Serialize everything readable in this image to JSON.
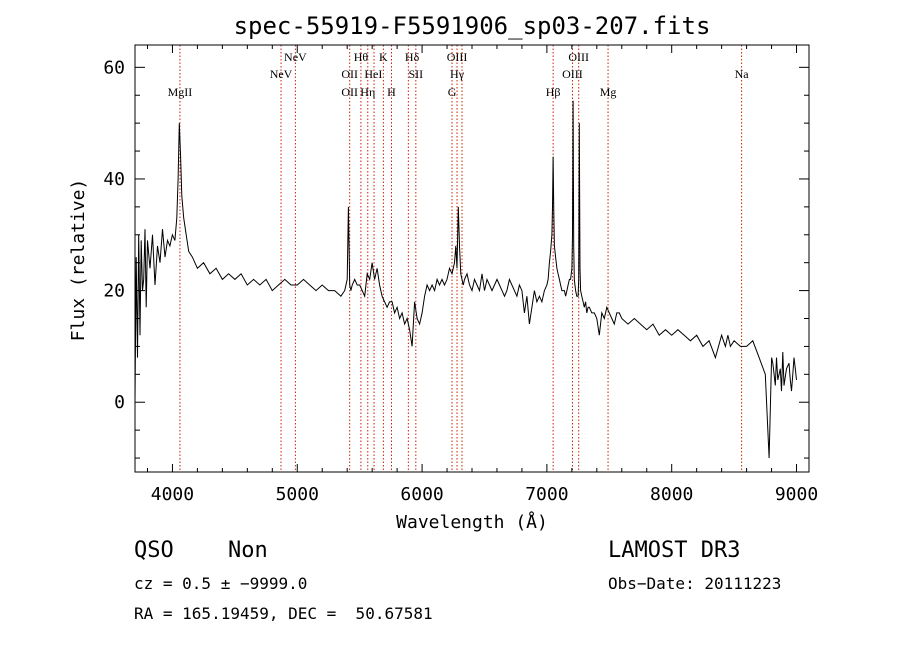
{
  "chart_data": {
    "type": "line",
    "title": "spec-55919-F5591906_sp03-207.fits",
    "xlabel": "Wavelength (Å)",
    "ylabel": "Flux (relative)",
    "xlim": [
      3700,
      9100
    ],
    "ylim": [
      -12.5,
      64
    ],
    "x_ticks": [
      4000,
      5000,
      6000,
      7000,
      8000,
      9000
    ],
    "y_ticks": [
      0,
      20,
      40,
      60
    ],
    "grid": false,
    "series": [
      {
        "name": "spectrum",
        "x": [
          3700,
          3710,
          3720,
          3730,
          3740,
          3750,
          3760,
          3770,
          3780,
          3790,
          3800,
          3820,
          3840,
          3860,
          3880,
          3900,
          3920,
          3940,
          3960,
          3980,
          4000,
          4020,
          4035,
          4045,
          4055,
          4065,
          4075,
          4090,
          4110,
          4130,
          4160,
          4200,
          4250,
          4300,
          4350,
          4400,
          4450,
          4500,
          4550,
          4600,
          4650,
          4700,
          4750,
          4800,
          4850,
          4900,
          4950,
          5000,
          5050,
          5100,
          5150,
          5200,
          5250,
          5300,
          5350,
          5380,
          5400,
          5410,
          5420,
          5430,
          5440,
          5460,
          5480,
          5500,
          5520,
          5540,
          5560,
          5580,
          5600,
          5620,
          5640,
          5660,
          5680,
          5700,
          5720,
          5740,
          5760,
          5780,
          5800,
          5820,
          5840,
          5860,
          5880,
          5900,
          5920,
          5940,
          5960,
          5980,
          6000,
          6020,
          6040,
          6060,
          6080,
          6100,
          6120,
          6140,
          6160,
          6180,
          6200,
          6220,
          6240,
          6260,
          6270,
          6280,
          6290,
          6300,
          6310,
          6320,
          6330,
          6340,
          6360,
          6380,
          6400,
          6420,
          6440,
          6460,
          6480,
          6500,
          6520,
          6540,
          6560,
          6580,
          6600,
          6620,
          6640,
          6660,
          6680,
          6700,
          6720,
          6740,
          6760,
          6780,
          6800,
          6820,
          6840,
          6860,
          6880,
          6900,
          6920,
          6940,
          6960,
          6980,
          7000,
          7010,
          7020,
          7030,
          7040,
          7045,
          7050,
          7055,
          7060,
          7070,
          7080,
          7090,
          7100,
          7110,
          7120,
          7130,
          7140,
          7150,
          7160,
          7170,
          7180,
          7190,
          7200,
          7205,
          7210,
          7215,
          7220,
          7230,
          7240,
          7250,
          7255,
          7260,
          7265,
          7270,
          7280,
          7290,
          7300,
          7310,
          7320,
          7330,
          7340,
          7360,
          7380,
          7400,
          7420,
          7440,
          7460,
          7480,
          7500,
          7520,
          7540,
          7560,
          7580,
          7600,
          7650,
          7700,
          7750,
          7800,
          7850,
          7900,
          7950,
          8000,
          8050,
          8100,
          8150,
          8200,
          8250,
          8300,
          8350,
          8400,
          8430,
          8450,
          8470,
          8500,
          8550,
          8600,
          8650,
          8700,
          8750,
          8780,
          8800,
          8810,
          8820,
          8830,
          8840,
          8850,
          8870,
          8880,
          8890,
          8900,
          8920,
          8940,
          8950,
          8960,
          8970,
          8980,
          8990,
          9000
        ],
        "y": [
          0,
          26,
          8,
          30,
          12,
          29,
          20,
          22,
          31,
          17,
          29,
          24,
          30,
          21,
          28,
          25,
          31,
          26,
          29,
          28,
          30,
          29,
          33,
          40,
          50,
          44,
          37,
          33,
          30,
          27,
          26,
          24,
          25,
          23,
          24,
          22,
          23,
          22,
          23,
          21,
          22,
          21,
          22,
          20,
          21,
          22,
          21,
          21,
          22,
          21,
          20,
          21,
          20,
          20,
          19,
          20,
          22,
          35,
          21,
          20,
          21,
          22,
          21,
          21,
          20,
          19,
          23,
          22,
          25,
          22,
          24,
          21,
          19,
          18,
          17,
          18,
          18,
          16,
          17,
          15,
          16,
          14,
          15,
          13,
          10,
          18,
          15,
          14,
          16,
          19,
          21,
          20,
          21,
          20,
          22,
          21,
          22,
          21,
          22,
          24,
          23,
          25,
          28,
          24,
          35,
          28,
          23,
          22,
          21,
          22,
          23,
          21,
          20,
          22,
          21,
          20,
          23,
          20,
          22,
          21,
          20,
          21,
          22,
          21,
          20,
          19,
          20,
          22,
          21,
          20,
          19,
          21,
          20,
          16,
          19,
          14,
          17,
          20,
          18,
          19,
          18,
          20,
          21,
          22,
          25,
          27,
          30,
          35,
          44,
          34,
          28,
          26,
          24,
          23,
          22,
          21,
          20,
          20,
          20,
          19,
          20,
          21,
          22,
          22,
          24,
          30,
          54,
          28,
          22,
          20,
          19,
          19,
          22,
          50,
          24,
          20,
          19,
          18,
          17,
          18,
          16,
          17,
          17,
          16,
          16,
          15,
          12,
          16,
          15,
          17,
          16,
          15,
          14,
          16,
          16,
          15,
          14,
          15,
          14,
          13,
          14,
          12,
          13,
          12,
          13,
          12,
          11,
          12,
          10,
          11,
          8,
          12,
          10,
          12,
          10,
          11,
          10,
          10,
          11,
          8,
          5,
          -10,
          8,
          7,
          5,
          3,
          8,
          4,
          6,
          2,
          9,
          3,
          6,
          7,
          4,
          2,
          5,
          8,
          6,
          4
        ]
      }
    ],
    "emission_lines": [
      {
        "label": "MgII",
        "x": 4060,
        "row": 3
      },
      {
        "label": "NeV",
        "x": 4870,
        "row": 2
      },
      {
        "label": "NeV",
        "x": 4985,
        "row": 1
      },
      {
        "label": "OII",
        "x": 5420,
        "row": 2
      },
      {
        "label": "OII",
        "x": 5420,
        "row": 3
      },
      {
        "label": "Hθ",
        "x": 5510,
        "row": 1
      },
      {
        "label": "Hη",
        "x": 5565,
        "row": 3
      },
      {
        "label": "HeI",
        "x": 5610,
        "row": 2
      },
      {
        "label": "K",
        "x": 5690,
        "row": 1
      },
      {
        "label": "H",
        "x": 5755,
        "row": 3
      },
      {
        "label": "Hδ",
        "x": 5920,
        "row": 1
      },
      {
        "label": "SII",
        "x": 5950,
        "row": 2
      },
      {
        "label": "OIII",
        "x": 6280,
        "row": 1
      },
      {
        "label": "Hγ",
        "x": 6280,
        "row": 2
      },
      {
        "label": "G",
        "x": 6240,
        "row": 3
      },
      {
        "label": "OIII",
        "x": 7205,
        "row": 2
      },
      {
        "label": "Hβ",
        "x": 7050,
        "row": 3
      },
      {
        "label": "OIII",
        "x": 7255,
        "row": 1
      },
      {
        "label": "Mg",
        "x": 7490,
        "row": 3
      },
      {
        "label": "Na",
        "x": 8560,
        "row": 2
      }
    ],
    "line_markers_x": [
      4060,
      4870,
      4985,
      5420,
      5510,
      5565,
      5615,
      5690,
      5755,
      5890,
      5950,
      6240,
      6280,
      6320,
      7050,
      7205,
      7255,
      7490,
      8560
    ]
  },
  "info": {
    "class": "QSO",
    "subclass": "Non",
    "cz": "cz = 0.5 ± −9999.0",
    "radec": "RA = 165.19459, DEC =  50.67581",
    "survey": "LAMOST DR3",
    "obsdate": "Obs−Date: 20111223"
  },
  "colors": {
    "line": "#000000",
    "marker": "#cc2200",
    "axis": "#000000"
  }
}
